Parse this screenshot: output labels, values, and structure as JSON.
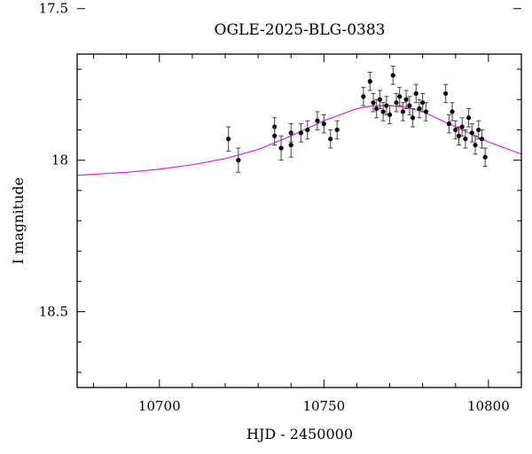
{
  "chart_data": {
    "type": "scatter",
    "title": "OGLE-2025-BLG-0383",
    "xlabel": "HJD - 2450000",
    "ylabel": "I magnitude",
    "xlim": [
      10675,
      10810
    ],
    "ylim": [
      18.75,
      17.65
    ],
    "y_inverted": true,
    "xticks": [
      10700,
      10750,
      10800
    ],
    "yticks": [
      17.5,
      18,
      18.5
    ],
    "grid": false,
    "colors": {
      "data": "#000000",
      "model": "#e020e0"
    },
    "series": [
      {
        "kind": "points_with_errorbars",
        "x": [
          10721,
          10724,
          10735,
          10735,
          10737,
          10740,
          10740,
          10743,
          10745,
          10748,
          10750,
          10752,
          10754,
          10762,
          10764,
          10765,
          10766,
          10767,
          10768,
          10769,
          10770,
          10771,
          10772,
          10773,
          10774,
          10775,
          10776,
          10777,
          10778,
          10779,
          10780,
          10781,
          10787,
          10788,
          10789,
          10790,
          10791,
          10792,
          10793,
          10794,
          10795,
          10796,
          10797,
          10798,
          10799
        ],
        "y": [
          17.93,
          18.0,
          17.89,
          17.92,
          17.96,
          17.91,
          17.95,
          17.91,
          17.9,
          17.87,
          17.88,
          17.93,
          17.9,
          17.79,
          17.74,
          17.81,
          17.83,
          17.8,
          17.84,
          17.82,
          17.85,
          17.72,
          17.81,
          17.79,
          17.84,
          17.8,
          17.82,
          17.86,
          17.78,
          17.83,
          17.81,
          17.84,
          17.78,
          17.88,
          17.84,
          17.9,
          17.92,
          17.89,
          17.93,
          17.86,
          17.91,
          17.95,
          17.9,
          17.93,
          17.99
        ],
        "yerr": [
          0.04,
          0.04,
          0.03,
          0.03,
          0.04,
          0.03,
          0.04,
          0.03,
          0.03,
          0.03,
          0.03,
          0.03,
          0.03,
          0.03,
          0.03,
          0.03,
          0.03,
          0.03,
          0.03,
          0.03,
          0.03,
          0.03,
          0.03,
          0.03,
          0.03,
          0.03,
          0.03,
          0.03,
          0.03,
          0.03,
          0.03,
          0.03,
          0.03,
          0.03,
          0.03,
          0.03,
          0.03,
          0.03,
          0.03,
          0.03,
          0.03,
          0.03,
          0.03,
          0.03,
          0.03
        ]
      },
      {
        "kind": "model_line",
        "x": [
          10675,
          10690,
          10700,
          10710,
          10720,
          10730,
          10740,
          10750,
          10760,
          10765,
          10770,
          10775,
          10780,
          10790,
          10800,
          10810
        ],
        "y": [
          18.05,
          18.04,
          18.03,
          18.015,
          17.995,
          17.965,
          17.92,
          17.87,
          17.83,
          17.82,
          17.82,
          17.825,
          17.84,
          17.89,
          17.94,
          17.98
        ]
      }
    ]
  }
}
